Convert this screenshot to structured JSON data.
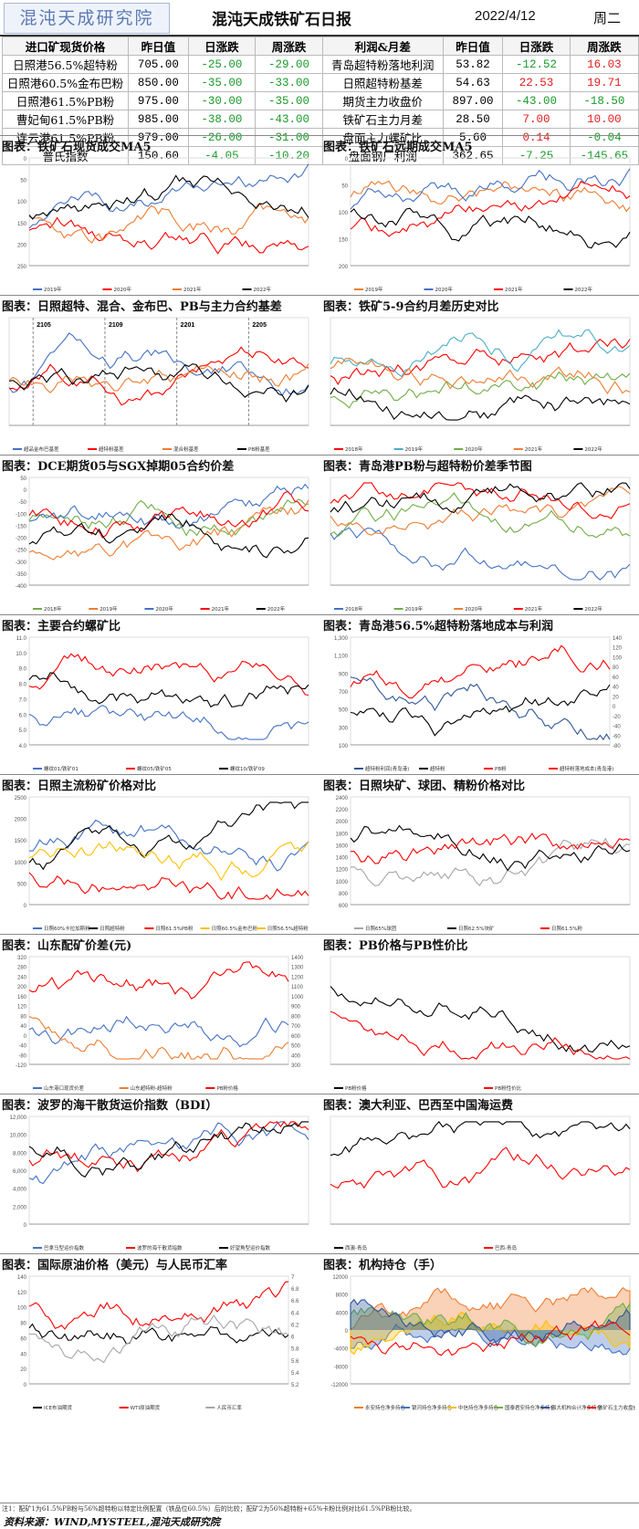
{
  "header": {
    "logo": "混沌天成研究院",
    "title": "混沌天成铁矿石日报",
    "date": "2022/4/12",
    "weekday": "周二"
  },
  "table": {
    "left_headers": [
      "进口矿现货价格",
      "昨日值",
      "日涨跌",
      "周涨跌"
    ],
    "right_headers": [
      "利润&月差",
      "昨日值",
      "日涨跌",
      "周涨跌"
    ],
    "left_rows": [
      {
        "name": "日照港56.5%超特粉",
        "value": "705.00",
        "day": "-25.00",
        "week": "-29.00"
      },
      {
        "name": "日照港60.5%金布巴粉",
        "value": "850.00",
        "day": "-35.00",
        "week": "-33.00"
      },
      {
        "name": "日照港61.5%PB粉",
        "value": "975.00",
        "day": "-30.00",
        "week": "-35.00"
      },
      {
        "name": "曹妃甸61.5%PB粉",
        "value": "985.00",
        "day": "-38.00",
        "week": "-43.00"
      },
      {
        "name": "连云港61.5%PB粉",
        "value": "979.00",
        "day": "-26.00",
        "week": "-31.00"
      },
      {
        "name": "普氏指数",
        "value": "150.60",
        "day": "-4.05",
        "week": "-10.20"
      }
    ],
    "right_rows": [
      {
        "name": "青岛超特粉落地利润",
        "value": "53.82",
        "day": "-12.52",
        "week": "16.03"
      },
      {
        "name": "日照超特粉基差",
        "value": "54.63",
        "day": "22.53",
        "week": "19.71"
      },
      {
        "name": "期货主力收盘价",
        "value": "897.00",
        "day": "-43.00",
        "week": "-18.50"
      },
      {
        "name": "铁矿石主力月差",
        "value": "28.50",
        "day": "7.00",
        "week": "10.00"
      },
      {
        "name": "盘面主力螺矿比",
        "value": "5.60",
        "day": "0.14",
        "week": "-0.04"
      },
      {
        "name": "盘面钢厂利润",
        "value": "362.65",
        "day": "-7.25",
        "week": "-145.65"
      }
    ]
  },
  "panels": [
    {
      "title": "图表：铁矿石现货成交MA5"
    },
    {
      "title": "图表：铁矿石远期成交MA5"
    },
    {
      "title": "图表：日照超特、混合、金布巴、PB与主力合约基差"
    },
    {
      "title": "图表：铁矿5-9合约月差历史对比"
    },
    {
      "title": "图表：DCE期货05与SGX掉期05合约价差"
    },
    {
      "title": "图表：青岛港PB粉与超特粉价差季节图"
    },
    {
      "title": "图表：主要合约螺矿比"
    },
    {
      "title": "图表：青岛港56.5%超特粉落地成本与利润"
    },
    {
      "title": "图表：日照主流粉矿价格对比"
    },
    {
      "title": "图表：日照块矿、球团、精粉价格对比"
    },
    {
      "title": "图表：山东配矿价差(元)"
    },
    {
      "title": "图表：PB价格与PB性价比"
    },
    {
      "title": "图表：波罗的海干散货运价指数（BDI）"
    },
    {
      "title": "图表：澳大利亚、巴西至中国海运费"
    },
    {
      "title": "图表：国际原油价格（美元）与人民币汇率"
    },
    {
      "title": "图表：机构持仓（手）"
    }
  ],
  "chart_data": [
    {
      "type": "line",
      "yticks": [
        "0",
        "50",
        "100",
        "150",
        "200",
        "250"
      ],
      "legend": [
        "2019年",
        "2020年",
        "2021年",
        "2022年"
      ],
      "series": [
        {
          "color": "#4472c4"
        },
        {
          "color": "#ff0000"
        },
        {
          "color": "#ed7d31"
        },
        {
          "color": "#000000"
        }
      ]
    },
    {
      "type": "line",
      "yticks": [
        "0",
        "50",
        "100",
        "150",
        "200"
      ],
      "legend": [
        "2019年",
        "2020年",
        "2021年",
        "2022年"
      ],
      "series": [
        {
          "color": "#ed7d31"
        },
        {
          "color": "#4472c4"
        },
        {
          "color": "#ff0000"
        },
        {
          "color": "#000000"
        }
      ]
    },
    {
      "type": "line",
      "yticks": [],
      "annotations": [
        "2105",
        "2109",
        "2201",
        "2205"
      ],
      "legend": [
        "超品金布巴基差",
        "超特粉基差",
        "混合粉基差",
        "PB粉基差"
      ],
      "series": [
        {
          "color": "#4472c4"
        },
        {
          "color": "#ff0000"
        },
        {
          "color": "#ed7d31"
        },
        {
          "color": "#000000"
        }
      ]
    },
    {
      "type": "line",
      "yticks": [],
      "legend": [
        "2018年",
        "2019年",
        "2020年",
        "2021年",
        "2022年"
      ],
      "series": [
        {
          "color": "#ff0000"
        },
        {
          "color": "#4bacc6"
        },
        {
          "color": "#70ad47"
        },
        {
          "color": "#ed7d31"
        },
        {
          "color": "#000000"
        }
      ]
    },
    {
      "type": "line",
      "yticks": [
        "50",
        "0",
        "-50",
        "-100",
        "-150",
        "-200",
        "-250",
        "-300",
        "-350",
        "-400"
      ],
      "legend": [
        "2018年",
        "2019年",
        "2020年",
        "2021年",
        "2022年"
      ],
      "series": [
        {
          "color": "#70ad47"
        },
        {
          "color": "#ed7d31"
        },
        {
          "color": "#4472c4"
        },
        {
          "color": "#ff0000"
        },
        {
          "color": "#000000"
        }
      ]
    },
    {
      "type": "line",
      "yticks": [],
      "legend": [
        "2018年",
        "2019年",
        "2020年",
        "2021年",
        "2022年"
      ],
      "series": [
        {
          "color": "#4472c4"
        },
        {
          "color": "#70ad47"
        },
        {
          "color": "#ed7d31"
        },
        {
          "color": "#ff0000"
        },
        {
          "color": "#000000"
        }
      ]
    },
    {
      "type": "line",
      "yticks": [
        "11.0",
        "10.0",
        "9.0",
        "8.0",
        "7.0",
        "6.0",
        "5.0",
        "4.0"
      ],
      "legend": [
        "螺纹01/铁矿01",
        "螺纹05/铁矿05",
        "螺纹10/铁矿09"
      ],
      "series": [
        {
          "color": "#4472c4"
        },
        {
          "color": "#ff0000"
        },
        {
          "color": "#000000"
        }
      ]
    },
    {
      "type": "line",
      "yticks": [
        "1,300",
        "1,100",
        "900",
        "700",
        "500",
        "300",
        "100"
      ],
      "y2ticks": [
        "140",
        "120",
        "100",
        "80",
        "60",
        "40",
        "20",
        "0",
        "-20",
        "-40",
        "-60",
        "-80"
      ],
      "legend": [
        "超特粉利润(青岛港)",
        "超特粉",
        "PB粉",
        "超特粉落地成本(青岛港)"
      ],
      "series": [
        {
          "color": "#2f5597"
        },
        {
          "color": "#000000"
        },
        {
          "color": "#ff0000"
        }
      ]
    },
    {
      "type": "line",
      "yticks": [
        "2500",
        "2000",
        "1500",
        "1000",
        "500",
        "0"
      ],
      "legend": [
        "日照60%卡拉加斯粉",
        "日照超特粉",
        "日照61.5%PB粉",
        "日照60.5%金布巴粉",
        "日照56.5%超特粉"
      ],
      "series": [
        {
          "color": "#4472c4"
        },
        {
          "color": "#000000"
        },
        {
          "color": "#ff0000"
        },
        {
          "color": "#ffc000"
        }
      ]
    },
    {
      "type": "line",
      "yticks": [
        "2400",
        "2200",
        "2000",
        "1800",
        "1600",
        "1400",
        "1200",
        "1000",
        "800",
        "600"
      ],
      "legend": [
        "日照65%球团",
        "日照62.5%块矿",
        "日照61.5%粉"
      ],
      "series": [
        {
          "color": "#a6a6a6"
        },
        {
          "color": "#000000"
        },
        {
          "color": "#ff0000"
        }
      ]
    },
    {
      "type": "line",
      "yticks": [
        "320",
        "280",
        "240",
        "200",
        "160",
        "120",
        "80",
        "40",
        "0",
        "-40",
        "-80",
        "-120"
      ],
      "y2ticks": [
        "1400",
        "1300",
        "1200",
        "1100",
        "1000",
        "900",
        "800",
        "700",
        "600",
        "500",
        "400",
        "300"
      ],
      "legend": [
        "山东港口现货价差",
        "山东超特粉-超特粉",
        "PB粉价格"
      ],
      "series": [
        {
          "color": "#4472c4"
        },
        {
          "color": "#ed7d31"
        },
        {
          "color": "#ff0000"
        }
      ]
    },
    {
      "type": "line",
      "yticks": [],
      "legend": [
        "PB粉价格",
        "PB粉性价比"
      ],
      "series": [
        {
          "color": "#000000"
        },
        {
          "color": "#ff0000"
        }
      ]
    },
    {
      "type": "line",
      "yticks": [
        "12,000",
        "10,000",
        "8,000",
        "6,000",
        "4,000",
        "2,000",
        "0"
      ],
      "legend": [
        "巴拿马型运价指数",
        "波罗的海干散货指数",
        "好望角型运价指数"
      ],
      "series": [
        {
          "color": "#4472c4"
        },
        {
          "color": "#ff0000"
        },
        {
          "color": "#000000"
        }
      ]
    },
    {
      "type": "line",
      "yticks": [],
      "legend": [
        "西澳-青岛",
        "巴西-青岛"
      ],
      "series": [
        {
          "color": "#000000"
        },
        {
          "color": "#ff0000"
        }
      ]
    },
    {
      "type": "line",
      "yticks": [
        "140",
        "120",
        "100",
        "80",
        "60",
        "40",
        "20",
        "0"
      ],
      "y2ticks": [
        "7",
        "6.8",
        "6.6",
        "6.4",
        "6.2",
        "6",
        "5.8",
        "5.6",
        "5.4",
        "5.2"
      ],
      "legend": [
        "ICE布油期货",
        "WTI原油期货",
        "人民币汇率"
      ],
      "series": [
        {
          "color": "#000000"
        },
        {
          "color": "#ff0000"
        },
        {
          "color": "#a6a6a6"
        }
      ]
    },
    {
      "type": "area",
      "yticks": [
        "12000",
        "8000",
        "4000",
        "0",
        "-4000",
        "-8000",
        "-12000"
      ],
      "legend": [
        "永安持仓净多持仓",
        "银河持仓净多持仓",
        "中信持仓净多持仓",
        "国泰君安持仓净多持仓",
        "四大机构合计净多持仓",
        "铁矿石主力收盘价"
      ],
      "series": [
        {
          "color": "#ed7d31"
        },
        {
          "color": "#4472c4"
        },
        {
          "color": "#ffc000"
        },
        {
          "color": "#70ad47"
        },
        {
          "color": "#2f5597"
        },
        {
          "color": "#ff0000"
        }
      ]
    }
  ],
  "footer": {
    "note": "注1：配矿1为61.5%PB粉与56%超特粉以特定比例配置（铁品位60.5%）后的比较；配矿2为56%超特粉+65%卡粉比例对比61.5%PB粉比较。",
    "source": "资料来源：WIND,MYSTEEL,混沌天成研究院"
  }
}
